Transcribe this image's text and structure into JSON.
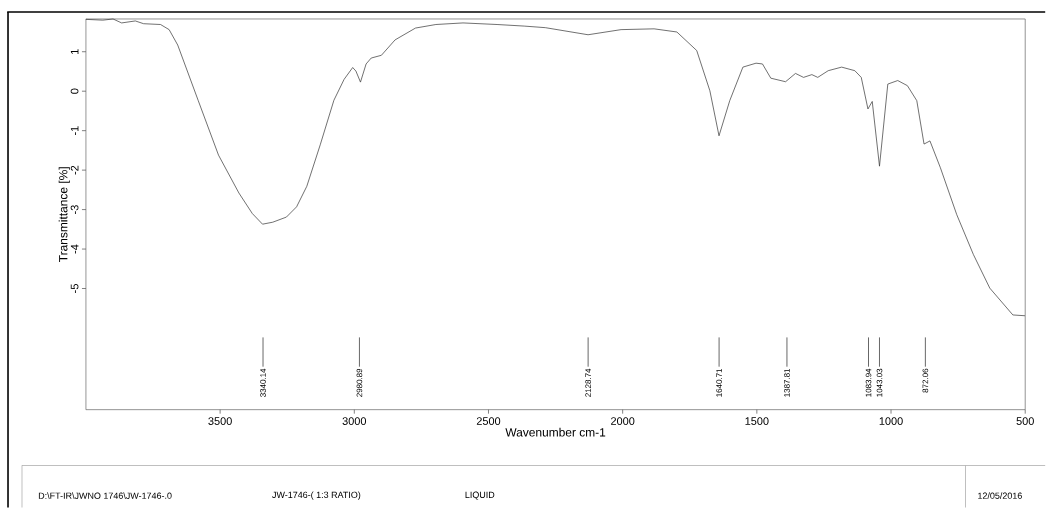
{
  "chart_data": {
    "type": "line",
    "xlabel": "Wavenumber cm-1",
    "ylabel": "Transmittance [%]",
    "x": [
      4000,
      3937,
      3899,
      3867,
      3816,
      3785,
      3722,
      3690,
      3658,
      3582,
      3506,
      3430,
      3380,
      3342,
      3304,
      3253,
      3215,
      3177,
      3127,
      3076,
      3038,
      3006,
      2994,
      2977,
      2956,
      2937,
      2899,
      2848,
      2772,
      2696,
      2595,
      2468,
      2367,
      2288,
      2129,
      2006,
      1883,
      1798,
      1724,
      1675,
      1641,
      1601,
      1552,
      1503,
      1479,
      1448,
      1393,
      1356,
      1326,
      1295,
      1273,
      1234,
      1184,
      1135,
      1111,
      1086,
      1070,
      1043,
      1012,
      975,
      939,
      904,
      877,
      855,
      816,
      755,
      693,
      632,
      546,
      501
    ],
    "values": [
      1.82,
      1.8,
      1.83,
      1.73,
      1.78,
      1.71,
      1.69,
      1.56,
      1.17,
      -0.23,
      -1.62,
      -2.58,
      -3.1,
      -3.37,
      -3.32,
      -3.19,
      -2.93,
      -2.41,
      -1.36,
      -0.23,
      0.3,
      0.6,
      0.51,
      0.23,
      0.69,
      0.84,
      0.91,
      1.3,
      1.6,
      1.69,
      1.73,
      1.69,
      1.65,
      1.61,
      1.43,
      1.56,
      1.58,
      1.5,
      1.03,
      0.01,
      -1.13,
      -0.24,
      0.61,
      0.71,
      0.69,
      0.33,
      0.24,
      0.45,
      0.35,
      0.42,
      0.35,
      0.52,
      0.61,
      0.52,
      0.35,
      -0.45,
      -0.26,
      -1.9,
      0.18,
      0.27,
      0.14,
      -0.24,
      -1.34,
      -1.26,
      -1.94,
      -3.13,
      -4.14,
      -4.99,
      -5.67,
      -5.69
    ],
    "color": "#333333",
    "xlim": [
      4000,
      500
    ],
    "ylim": [
      -8.07,
      1.83
    ],
    "xticks": [
      3500,
      3000,
      2500,
      2000,
      1500,
      1000,
      500
    ],
    "yticks": [
      -5,
      -4,
      -3,
      -2,
      -1,
      0,
      1
    ],
    "grid": false,
    "marker": "none",
    "line_style": "solid",
    "ref_lines": [
      {
        "axis": "x",
        "value": 3340.14,
        "label": "3340.14"
      },
      {
        "axis": "x",
        "value": 2980.89,
        "label": "2980.89"
      },
      {
        "axis": "x",
        "value": 2128.74,
        "label": "2128.74"
      },
      {
        "axis": "x",
        "value": 1640.71,
        "label": "1640.71"
      },
      {
        "axis": "x",
        "value": 1387.81,
        "label": "1387.81"
      },
      {
        "axis": "x",
        "value": 1083.94,
        "label": "1083.94"
      },
      {
        "axis": "x",
        "value": 1043.03,
        "label": "1043.03"
      },
      {
        "axis": "x",
        "value": 872.06,
        "label": "872.06"
      }
    ],
    "annotations": [
      "D:\\FT-IR\\JWNO 1746\\JW-1746-.0",
      "JW-1746-( 1:3 RATIO)",
      "LIQUID",
      "12/05/2016"
    ]
  }
}
